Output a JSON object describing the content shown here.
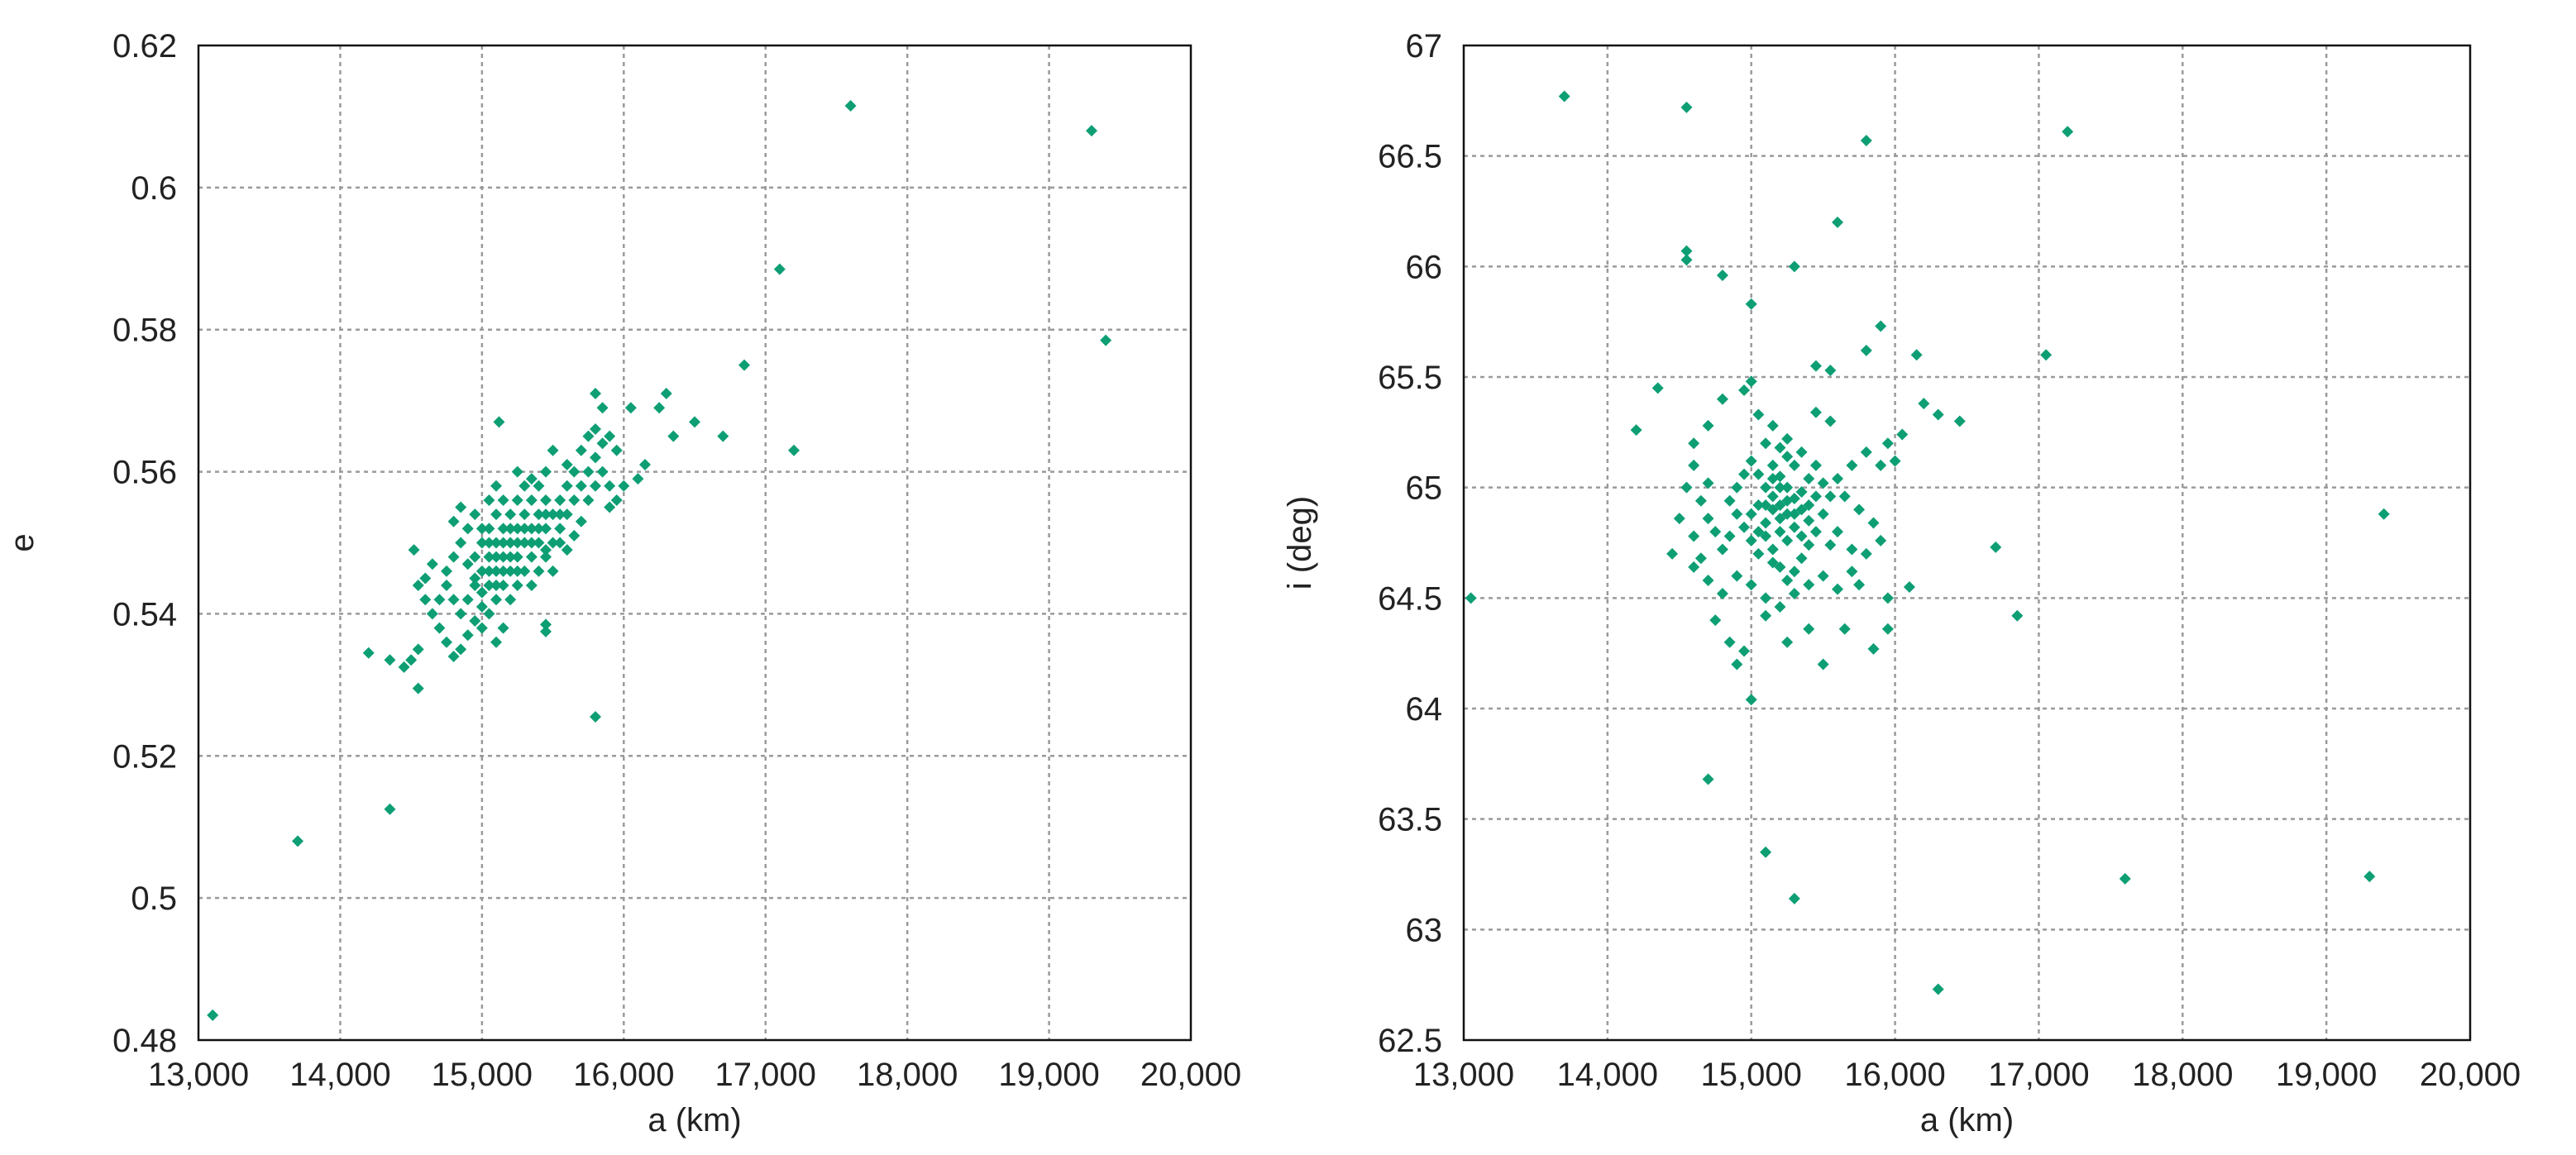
{
  "colors": {
    "marker": "#0d9e74",
    "grid": "#9a9a9a",
    "axis": "#111111"
  },
  "chart_data": [
    {
      "type": "scatter",
      "xlabel": "a (km)",
      "ylabel": "e",
      "xlim": [
        13000,
        20000
      ],
      "ylim": [
        0.48,
        0.62
      ],
      "xticks": [
        13000,
        14000,
        15000,
        16000,
        17000,
        18000,
        19000,
        20000
      ],
      "xtick_labels": [
        "13,000",
        "14,000",
        "15,000",
        "16,000",
        "17,000",
        "18,000",
        "19,000",
        "20,000"
      ],
      "yticks": [
        0.48,
        0.5,
        0.52,
        0.54,
        0.56,
        0.58,
        0.6,
        0.62
      ],
      "ytick_labels": [
        "0.48",
        "0.5",
        "0.52",
        "0.54",
        "0.56",
        "0.58",
        "0.6",
        "0.62"
      ],
      "grid": true,
      "marker": "diamond",
      "points": [
        [
          13100,
          0.4835
        ],
        [
          13700,
          0.508
        ],
        [
          14350,
          0.5125
        ],
        [
          14200,
          0.5345
        ],
        [
          14350,
          0.5335
        ],
        [
          14450,
          0.5325
        ],
        [
          14550,
          0.5295
        ],
        [
          14500,
          0.5335
        ],
        [
          14550,
          0.535
        ],
        [
          14520,
          0.549
        ],
        [
          14550,
          0.544
        ],
        [
          14600,
          0.542
        ],
        [
          14650,
          0.54
        ],
        [
          14700,
          0.538
        ],
        [
          14750,
          0.536
        ],
        [
          14800,
          0.534
        ],
        [
          14700,
          0.542
        ],
        [
          14750,
          0.546
        ],
        [
          14800,
          0.548
        ],
        [
          14850,
          0.55
        ],
        [
          14900,
          0.552
        ],
        [
          14950,
          0.554
        ],
        [
          14850,
          0.555
        ],
        [
          14800,
          0.553
        ],
        [
          14900,
          0.547
        ],
        [
          14950,
          0.545
        ],
        [
          15000,
          0.543
        ],
        [
          15000,
          0.541
        ],
        [
          14950,
          0.539
        ],
        [
          14900,
          0.537
        ],
        [
          14850,
          0.535
        ],
        [
          15050,
          0.54
        ],
        [
          15100,
          0.542
        ],
        [
          15000,
          0.546
        ],
        [
          15050,
          0.548
        ],
        [
          15100,
          0.55
        ],
        [
          15150,
          0.552
        ],
        [
          15200,
          0.55
        ],
        [
          15250,
          0.548
        ],
        [
          15200,
          0.546
        ],
        [
          15150,
          0.544
        ],
        [
          15100,
          0.546
        ],
        [
          15050,
          0.544
        ],
        [
          15150,
          0.548
        ],
        [
          15200,
          0.554
        ],
        [
          15250,
          0.552
        ],
        [
          15300,
          0.55
        ],
        [
          15350,
          0.552
        ],
        [
          15300,
          0.554
        ],
        [
          15250,
          0.556
        ],
        [
          15300,
          0.558
        ],
        [
          15350,
          0.556
        ],
        [
          15400,
          0.554
        ],
        [
          15400,
          0.558
        ],
        [
          15450,
          0.556
        ],
        [
          15500,
          0.554
        ],
        [
          15450,
          0.552
        ],
        [
          15500,
          0.55
        ],
        [
          15550,
          0.552
        ],
        [
          15600,
          0.554
        ],
        [
          15550,
          0.556
        ],
        [
          15600,
          0.558
        ],
        [
          15650,
          0.556
        ],
        [
          15700,
          0.558
        ],
        [
          15650,
          0.56
        ],
        [
          15050,
          0.552
        ],
        [
          15100,
          0.554
        ],
        [
          15150,
          0.556
        ],
        [
          15000,
          0.55
        ],
        [
          14950,
          0.548
        ],
        [
          15050,
          0.546
        ],
        [
          15100,
          0.544
        ],
        [
          15150,
          0.55
        ],
        [
          15200,
          0.548
        ],
        [
          15250,
          0.55
        ],
        [
          15300,
          0.546
        ],
        [
          15350,
          0.548
        ],
        [
          15400,
          0.55
        ],
        [
          15250,
          0.546
        ],
        [
          15200,
          0.542
        ],
        [
          15150,
          0.546
        ],
        [
          15100,
          0.548
        ],
        [
          15050,
          0.55
        ],
        [
          15000,
          0.552
        ],
        [
          15300,
          0.552
        ],
        [
          15350,
          0.55
        ],
        [
          15400,
          0.552
        ],
        [
          15450,
          0.554
        ],
        [
          15200,
          0.552
        ],
        [
          15120,
          0.567
        ],
        [
          15250,
          0.56
        ],
        [
          15350,
          0.559
        ],
        [
          15450,
          0.549
        ],
        [
          15500,
          0.546
        ],
        [
          15550,
          0.55
        ],
        [
          15600,
          0.549
        ],
        [
          15700,
          0.553
        ],
        [
          15750,
          0.556
        ],
        [
          15800,
          0.558
        ],
        [
          15750,
          0.56
        ],
        [
          15800,
          0.562
        ],
        [
          15850,
          0.56
        ],
        [
          15900,
          0.558
        ],
        [
          15850,
          0.564
        ],
        [
          15800,
          0.566
        ],
        [
          15850,
          0.569
        ],
        [
          15800,
          0.571
        ],
        [
          15900,
          0.565
        ],
        [
          15950,
          0.563
        ],
        [
          16000,
          0.558
        ],
        [
          15950,
          0.556
        ],
        [
          15900,
          0.555
        ],
        [
          15650,
          0.551
        ],
        [
          15700,
          0.563
        ],
        [
          15750,
          0.565
        ],
        [
          15500,
          0.563
        ],
        [
          15450,
          0.56
        ],
        [
          15600,
          0.561
        ],
        [
          15450,
          0.5375
        ],
        [
          15450,
          0.5385
        ],
        [
          15800,
          0.5255
        ],
        [
          16050,
          0.569
        ],
        [
          16100,
          0.559
        ],
        [
          16150,
          0.561
        ],
        [
          16250,
          0.569
        ],
        [
          16300,
          0.571
        ],
        [
          16350,
          0.565
        ],
        [
          16500,
          0.567
        ],
        [
          16700,
          0.565
        ],
        [
          16850,
          0.575
        ],
        [
          17100,
          0.5885
        ],
        [
          17200,
          0.563
        ],
        [
          17600,
          0.6115
        ],
        [
          19300,
          0.608
        ],
        [
          19400,
          0.5785
        ],
        [
          15150,
          0.538
        ],
        [
          15100,
          0.536
        ],
        [
          14900,
          0.542
        ],
        [
          14950,
          0.544
        ],
        [
          15000,
          0.538
        ],
        [
          15250,
          0.544
        ],
        [
          15350,
          0.544
        ],
        [
          15400,
          0.546
        ],
        [
          15450,
          0.548
        ],
        [
          15550,
          0.554
        ],
        [
          14650,
          0.547
        ],
        [
          14600,
          0.545
        ],
        [
          14750,
          0.544
        ],
        [
          14800,
          0.542
        ],
        [
          14850,
          0.54
        ],
        [
          15050,
          0.556
        ],
        [
          15100,
          0.558
        ]
      ]
    },
    {
      "type": "scatter",
      "xlabel": "a (km)",
      "ylabel": "i (deg)",
      "xlim": [
        13000,
        20000
      ],
      "ylim": [
        62.5,
        67
      ],
      "xticks": [
        13000,
        14000,
        15000,
        16000,
        17000,
        18000,
        19000,
        20000
      ],
      "xtick_labels": [
        "13,000",
        "14,000",
        "15,000",
        "16,000",
        "17,000",
        "18,000",
        "19,000",
        "20,000"
      ],
      "yticks": [
        62.5,
        63,
        63.5,
        64,
        64.5,
        65,
        65.5,
        66,
        66.5,
        67
      ],
      "ytick_labels": [
        "62.5",
        "63",
        "63.5",
        "64",
        "64.5",
        "65",
        "65.5",
        "66",
        "66.5",
        "67"
      ],
      "grid": true,
      "marker": "diamond",
      "points": [
        [
          13050,
          64.5
        ],
        [
          13700,
          66.77
        ],
        [
          14550,
          66.72
        ],
        [
          14550,
          66.07
        ],
        [
          14550,
          66.03
        ],
        [
          14800,
          65.96
        ],
        [
          15000,
          65.83
        ],
        [
          15800,
          66.57
        ],
        [
          15600,
          66.2
        ],
        [
          15300,
          66.0
        ],
        [
          17200,
          66.61
        ],
        [
          17050,
          65.6
        ],
        [
          15900,
          65.73
        ],
        [
          15800,
          65.62
        ],
        [
          16150,
          65.6
        ],
        [
          15450,
          65.55
        ],
        [
          15550,
          65.53
        ],
        [
          14350,
          65.45
        ],
        [
          14200,
          65.26
        ],
        [
          14600,
          65.2
        ],
        [
          14700,
          65.28
        ],
        [
          14800,
          65.4
        ],
        [
          14950,
          65.44
        ],
        [
          15000,
          65.48
        ],
        [
          15050,
          65.33
        ],
        [
          15100,
          65.2
        ],
        [
          15150,
          65.1
        ],
        [
          15200,
          65.05
        ],
        [
          15250,
          65.0
        ],
        [
          15300,
          64.95
        ],
        [
          15350,
          64.9
        ],
        [
          15400,
          64.85
        ],
        [
          15200,
          64.92
        ],
        [
          15250,
          64.88
        ],
        [
          15150,
          64.96
        ],
        [
          15100,
          65.0
        ],
        [
          15050,
          64.92
        ],
        [
          15000,
          64.88
        ],
        [
          15100,
          64.84
        ],
        [
          15200,
          64.8
        ],
        [
          15300,
          64.82
        ],
        [
          15250,
          64.76
        ],
        [
          15150,
          64.72
        ],
        [
          15100,
          64.78
        ],
        [
          15350,
          64.98
        ],
        [
          15400,
          65.04
        ],
        [
          15300,
          65.1
        ],
        [
          15250,
          65.14
        ],
        [
          15200,
          65.18
        ],
        [
          15350,
          65.16
        ],
        [
          15450,
          65.1
        ],
        [
          15500,
          65.02
        ],
        [
          15550,
          64.96
        ],
        [
          15500,
          64.88
        ],
        [
          15450,
          64.8
        ],
        [
          15400,
          64.74
        ],
        [
          15350,
          64.68
        ],
        [
          15300,
          64.62
        ],
        [
          15250,
          64.58
        ],
        [
          15200,
          64.64
        ],
        [
          15150,
          64.66
        ],
        [
          15050,
          64.7
        ],
        [
          15000,
          64.76
        ],
        [
          14950,
          64.82
        ],
        [
          14900,
          64.88
        ],
        [
          14850,
          64.94
        ],
        [
          14900,
          65.0
        ],
        [
          14950,
          65.06
        ],
        [
          15000,
          65.12
        ],
        [
          14850,
          64.78
        ],
        [
          14800,
          64.72
        ],
        [
          14750,
          64.8
        ],
        [
          14700,
          64.86
        ],
        [
          14650,
          64.94
        ],
        [
          14700,
          65.02
        ],
        [
          14600,
          65.1
        ],
        [
          14550,
          65.0
        ],
        [
          14500,
          64.86
        ],
        [
          14450,
          64.7
        ],
        [
          14600,
          64.64
        ],
        [
          14700,
          64.58
        ],
        [
          14800,
          64.52
        ],
        [
          14900,
          64.6
        ],
        [
          15000,
          64.56
        ],
        [
          15100,
          64.5
        ],
        [
          15200,
          64.46
        ],
        [
          15300,
          64.52
        ],
        [
          15400,
          64.56
        ],
        [
          15500,
          64.6
        ],
        [
          15600,
          64.54
        ],
        [
          15700,
          64.62
        ],
        [
          15800,
          64.7
        ],
        [
          15900,
          64.76
        ],
        [
          15850,
          64.84
        ],
        [
          15750,
          64.9
        ],
        [
          15650,
          64.96
        ],
        [
          15600,
          65.04
        ],
        [
          15700,
          65.1
        ],
        [
          15800,
          65.16
        ],
        [
          15900,
          65.1
        ],
        [
          15950,
          65.2
        ],
        [
          16050,
          65.24
        ],
        [
          16200,
          65.38
        ],
        [
          16300,
          65.33
        ],
        [
          16450,
          65.3
        ],
        [
          16000,
          65.12
        ],
        [
          15550,
          65.3
        ],
        [
          15450,
          65.34
        ],
        [
          14750,
          64.4
        ],
        [
          14850,
          64.3
        ],
        [
          14900,
          64.2
        ],
        [
          14950,
          64.26
        ],
        [
          15000,
          64.04
        ],
        [
          15100,
          64.42
        ],
        [
          15250,
          64.3
        ],
        [
          15400,
          64.36
        ],
        [
          15500,
          64.2
        ],
        [
          15650,
          64.36
        ],
        [
          15850,
          64.27
        ],
        [
          15950,
          64.36
        ],
        [
          15950,
          64.5
        ],
        [
          16100,
          64.55
        ],
        [
          16700,
          64.73
        ],
        [
          16850,
          64.42
        ],
        [
          14700,
          63.68
        ],
        [
          15100,
          63.35
        ],
        [
          15300,
          63.14
        ],
        [
          16300,
          62.73
        ],
        [
          17600,
          63.23
        ],
        [
          19300,
          63.24
        ],
        [
          19400,
          64.88
        ],
        [
          15150,
          65.28
        ],
        [
          15250,
          65.22
        ],
        [
          15050,
          65.06
        ],
        [
          15150,
          64.9
        ],
        [
          15200,
          64.86
        ],
        [
          15300,
          64.88
        ],
        [
          15250,
          64.94
        ],
        [
          15200,
          65.0
        ],
        [
          15150,
          65.04
        ],
        [
          15350,
          64.78
        ],
        [
          15400,
          64.92
        ],
        [
          15450,
          64.96
        ],
        [
          15100,
          64.92
        ],
        [
          15050,
          64.8
        ],
        [
          15550,
          64.74
        ],
        [
          15600,
          64.8
        ],
        [
          14600,
          64.78
        ],
        [
          14650,
          64.68
        ],
        [
          15700,
          64.72
        ],
        [
          15750,
          64.56
        ]
      ]
    }
  ]
}
